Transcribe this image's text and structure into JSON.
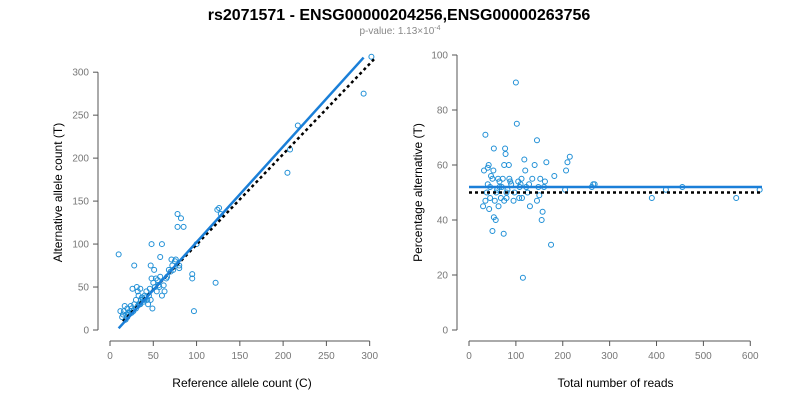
{
  "figure": {
    "title": "rs2071571 - ENSG00000204256,ENSG00000263756",
    "subtitle_prefix": "p-value: 1.13×10",
    "subtitle_exponent": "-4"
  },
  "colors": {
    "points": "#1f8fd6",
    "fit": "#1a7fd8",
    "reference": "#000000"
  },
  "chart_data": [
    {
      "type": "scatter",
      "xlabel": "Reference allele count (C)",
      "ylabel": "Alternative allele count (T)",
      "xlim": [
        0,
        305
      ],
      "ylim": [
        0,
        320
      ],
      "xticks": [
        0,
        50,
        100,
        150,
        200,
        250,
        300
      ],
      "yticks": [
        0,
        50,
        100,
        150,
        200,
        250,
        300
      ],
      "points": [
        [
          10,
          88
        ],
        [
          12,
          22
        ],
        [
          14,
          15
        ],
        [
          15,
          18
        ],
        [
          16,
          22
        ],
        [
          17,
          28
        ],
        [
          18,
          12
        ],
        [
          19,
          18
        ],
        [
          20,
          15
        ],
        [
          20,
          25
        ],
        [
          21,
          20
        ],
        [
          22,
          18
        ],
        [
          23,
          22
        ],
        [
          24,
          28
        ],
        [
          25,
          20
        ],
        [
          25,
          25
        ],
        [
          26,
          48
        ],
        [
          27,
          22
        ],
        [
          28,
          30
        ],
        [
          28,
          75
        ],
        [
          30,
          25
        ],
        [
          30,
          35
        ],
        [
          31,
          50
        ],
        [
          32,
          28
        ],
        [
          32,
          45
        ],
        [
          33,
          40
        ],
        [
          34,
          30
        ],
        [
          35,
          30
        ],
        [
          35,
          48
        ],
        [
          36,
          35
        ],
        [
          37,
          38
        ],
        [
          38,
          35
        ],
        [
          39,
          33
        ],
        [
          40,
          35
        ],
        [
          40,
          40
        ],
        [
          41,
          38
        ],
        [
          42,
          45
        ],
        [
          43,
          35
        ],
        [
          44,
          30
        ],
        [
          45,
          40
        ],
        [
          46,
          48
        ],
        [
          47,
          35
        ],
        [
          47,
          75
        ],
        [
          48,
          100
        ],
        [
          48,
          60
        ],
        [
          49,
          25
        ],
        [
          50,
          55
        ],
        [
          51,
          70
        ],
        [
          52,
          50
        ],
        [
          53,
          60
        ],
        [
          54,
          45
        ],
        [
          55,
          58
        ],
        [
          56,
          52
        ],
        [
          57,
          50
        ],
        [
          58,
          62
        ],
        [
          58,
          85
        ],
        [
          60,
          40
        ],
        [
          60,
          100
        ],
        [
          62,
          52
        ],
        [
          63,
          45
        ],
        [
          65,
          60
        ],
        [
          66,
          62
        ],
        [
          68,
          70
        ],
        [
          70,
          68
        ],
        [
          71,
          82
        ],
        [
          72,
          75
        ],
        [
          73,
          70
        ],
        [
          75,
          80
        ],
        [
          76,
          82
        ],
        [
          78,
          120
        ],
        [
          78,
          135
        ],
        [
          80,
          72
        ],
        [
          80,
          75
        ],
        [
          82,
          130
        ],
        [
          85,
          120
        ],
        [
          95,
          60
        ],
        [
          95,
          65
        ],
        [
          97,
          22
        ],
        [
          100,
          100
        ],
        [
          122,
          55
        ],
        [
          124,
          140
        ],
        [
          126,
          142
        ],
        [
          128,
          135
        ],
        [
          205,
          183
        ],
        [
          208,
          210
        ],
        [
          217,
          238
        ],
        [
          293,
          275
        ],
        [
          302,
          318
        ]
      ],
      "fit_line": {
        "x": [
          10,
          293
        ],
        "y": [
          2,
          317
        ]
      },
      "reference_line": {
        "x": [
          15,
          305
        ],
        "y": [
          10,
          315
        ]
      }
    },
    {
      "type": "scatter",
      "xlabel": "Total number of reads",
      "ylabel": "Percentage alternative (T)",
      "xlim": [
        0,
        625
      ],
      "ylim": [
        0,
        100
      ],
      "xticks": [
        0,
        100,
        200,
        300,
        400,
        500,
        600
      ],
      "yticks": [
        0,
        20,
        40,
        60,
        80,
        100
      ],
      "points": [
        [
          30,
          45
        ],
        [
          32,
          58
        ],
        [
          35,
          47
        ],
        [
          35,
          71
        ],
        [
          38,
          50
        ],
        [
          40,
          53
        ],
        [
          40,
          59
        ],
        [
          42,
          60
        ],
        [
          43,
          44
        ],
        [
          45,
          48
        ],
        [
          45,
          52
        ],
        [
          47,
          56
        ],
        [
          50,
          36
        ],
        [
          50,
          55
        ],
        [
          52,
          58
        ],
        [
          53,
          41
        ],
        [
          53,
          66
        ],
        [
          55,
          47
        ],
        [
          57,
          40
        ],
        [
          58,
          50
        ],
        [
          60,
          51
        ],
        [
          62,
          55
        ],
        [
          63,
          45
        ],
        [
          65,
          54
        ],
        [
          65,
          52
        ],
        [
          68,
          48
        ],
        [
          70,
          52
        ],
        [
          72,
          55
        ],
        [
          74,
          35
        ],
        [
          75,
          60
        ],
        [
          75,
          47
        ],
        [
          77,
          66
        ],
        [
          78,
          64
        ],
        [
          80,
          50
        ],
        [
          80,
          48
        ],
        [
          82,
          51
        ],
        [
          85,
          60
        ],
        [
          86,
          55
        ],
        [
          88,
          54
        ],
        [
          90,
          53
        ],
        [
          95,
          47
        ],
        [
          97,
          50
        ],
        [
          100,
          90
        ],
        [
          102,
          75
        ],
        [
          105,
          54
        ],
        [
          107,
          48
        ],
        [
          108,
          52
        ],
        [
          110,
          53
        ],
        [
          112,
          55
        ],
        [
          113,
          48
        ],
        [
          115,
          19
        ],
        [
          118,
          62
        ],
        [
          120,
          58
        ],
        [
          122,
          52
        ],
        [
          125,
          50
        ],
        [
          128,
          53
        ],
        [
          130,
          45
        ],
        [
          135,
          55
        ],
        [
          140,
          60
        ],
        [
          145,
          69
        ],
        [
          145,
          47
        ],
        [
          148,
          52
        ],
        [
          150,
          49
        ],
        [
          152,
          55
        ],
        [
          155,
          40
        ],
        [
          157,
          43
        ],
        [
          160,
          52
        ],
        [
          162,
          54
        ],
        [
          165,
          61
        ],
        [
          175,
          31
        ],
        [
          182,
          56
        ],
        [
          205,
          51
        ],
        [
          207,
          58
        ],
        [
          210,
          61
        ],
        [
          215,
          63
        ],
        [
          262,
          52
        ],
        [
          265,
          53
        ],
        [
          268,
          53
        ],
        [
          390,
          48
        ],
        [
          420,
          51
        ],
        [
          455,
          52
        ],
        [
          570,
          48
        ],
        [
          620,
          51
        ]
      ],
      "fit_line": {
        "x": [
          0,
          625
        ],
        "y": [
          52,
          52
        ]
      },
      "reference_line": {
        "x": [
          0,
          625
        ],
        "y": [
          50,
          50
        ]
      }
    }
  ]
}
